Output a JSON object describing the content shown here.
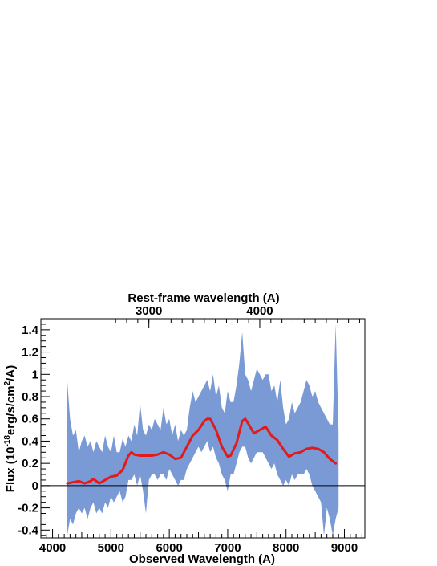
{
  "chart_data": {
    "type": "area",
    "xlabel": "Observed Wavelength (A)",
    "ylabel_prefix": "Flux (10",
    "ylabel_exp1": "-18",
    "ylabel_mid": "erg/s/cm",
    "ylabel_exp2": "2",
    "ylabel_suffix": "/A)",
    "top_axis_label": "Rest-frame wavelength (A)",
    "top_ticks": [
      {
        "label": "3000",
        "observed": 5650
      },
      {
        "label": "4000",
        "observed": 7550
      }
    ],
    "xlim": [
      3800,
      9350
    ],
    "ylim": [
      -0.47,
      1.5
    ],
    "xticks": [
      4000,
      5000,
      6000,
      7000,
      8000,
      9000
    ],
    "yticks": [
      -0.4,
      -0.2,
      0,
      0.2,
      0.4,
      0.6,
      0.8,
      1,
      1.2,
      1.4
    ],
    "ytick_labels": [
      "-0.4",
      "-0.2",
      "0",
      "0.2",
      "0.4",
      "0.6",
      "0.8",
      "1",
      "1.2",
      "1.4"
    ],
    "zero_line": 0,
    "band_color": "#7a9ad6",
    "smooth_color": "#e31a1c",
    "band": {
      "x": [
        4250,
        4300,
        4350,
        4400,
        4450,
        4500,
        4550,
        4600,
        4650,
        4700,
        4750,
        4800,
        4850,
        4900,
        4950,
        5000,
        5050,
        5100,
        5150,
        5200,
        5250,
        5300,
        5350,
        5400,
        5450,
        5500,
        5550,
        5600,
        5650,
        5700,
        5750,
        5800,
        5850,
        5900,
        5950,
        6000,
        6050,
        6100,
        6150,
        6200,
        6250,
        6300,
        6350,
        6400,
        6450,
        6500,
        6550,
        6600,
        6650,
        6700,
        6750,
        6800,
        6850,
        6900,
        6950,
        7000,
        7050,
        7100,
        7150,
        7200,
        7250,
        7300,
        7350,
        7400,
        7450,
        7500,
        7550,
        7600,
        7650,
        7700,
        7750,
        7800,
        7850,
        7900,
        7950,
        8000,
        8050,
        8100,
        8150,
        8200,
        8250,
        8300,
        8350,
        8400,
        8450,
        8500,
        8550,
        8600,
        8650,
        8700,
        8750,
        8800,
        8850,
        8900
      ],
      "upper": [
        0.95,
        0.6,
        0.45,
        0.5,
        0.3,
        0.4,
        0.45,
        0.35,
        0.4,
        0.3,
        0.4,
        0.35,
        0.3,
        0.45,
        0.35,
        0.3,
        0.45,
        0.3,
        0.3,
        0.42,
        0.35,
        0.45,
        0.4,
        0.55,
        0.45,
        0.74,
        0.5,
        0.45,
        0.55,
        0.5,
        0.6,
        0.55,
        0.5,
        0.7,
        0.55,
        0.6,
        0.45,
        0.55,
        0.4,
        0.5,
        0.45,
        0.5,
        0.7,
        0.85,
        0.75,
        0.8,
        0.85,
        0.9,
        0.95,
        0.85,
        1.0,
        0.8,
        0.9,
        0.7,
        0.65,
        0.85,
        0.75,
        0.75,
        0.9,
        1.1,
        1.38,
        1.0,
        0.95,
        0.85,
        0.95,
        1.05,
        1.0,
        0.95,
        1.0,
        1.0,
        0.85,
        0.9,
        0.75,
        0.95,
        0.7,
        0.55,
        0.6,
        0.75,
        0.65,
        0.7,
        0.75,
        0.85,
        0.95,
        0.9,
        0.8,
        0.85,
        0.75,
        0.7,
        0.65,
        0.6,
        0.55,
        0.55,
        1.45,
        0.5
      ],
      "lower": [
        -0.45,
        -0.3,
        -0.35,
        -0.25,
        -0.2,
        -0.25,
        -0.2,
        -0.3,
        -0.2,
        -0.15,
        -0.25,
        -0.2,
        -0.25,
        -0.15,
        -0.2,
        -0.1,
        -0.15,
        -0.1,
        -0.05,
        -0.15,
        -0.1,
        0.05,
        0.05,
        0.1,
        0.0,
        0.1,
        -0.05,
        -0.25,
        0.05,
        0.1,
        0.1,
        0.05,
        0.1,
        0.1,
        0.05,
        0.15,
        0.1,
        0.05,
        0.0,
        0.05,
        0.05,
        0.15,
        0.2,
        0.25,
        0.3,
        0.35,
        0.3,
        0.35,
        0.4,
        0.3,
        0.35,
        0.25,
        0.2,
        0.1,
        0.05,
        -0.05,
        0.1,
        0.1,
        0.2,
        0.3,
        0.35,
        0.35,
        0.25,
        0.2,
        0.25,
        0.3,
        0.3,
        0.3,
        0.25,
        0.2,
        0.15,
        0.2,
        0.1,
        0.05,
        0.0,
        0.05,
        0.0,
        0.1,
        0.05,
        0.1,
        0.1,
        0.1,
        0.15,
        0.1,
        0.0,
        -0.05,
        -0.1,
        -0.15,
        -0.45,
        -0.2,
        -0.3,
        -0.45,
        -0.3,
        -0.2
      ]
    },
    "smooth": {
      "x": [
        4250,
        4350,
        4450,
        4550,
        4650,
        4700,
        4800,
        4900,
        5000,
        5100,
        5200,
        5300,
        5350,
        5400,
        5500,
        5600,
        5700,
        5800,
        5900,
        6000,
        6100,
        6200,
        6300,
        6400,
        6500,
        6600,
        6650,
        6700,
        6800,
        6900,
        7000,
        7050,
        7150,
        7250,
        7300,
        7350,
        7450,
        7550,
        7650,
        7750,
        7850,
        7950,
        8050,
        8150,
        8250,
        8350,
        8450,
        8550,
        8650,
        8750,
        8850
      ],
      "y": [
        0.02,
        0.03,
        0.04,
        0.02,
        0.04,
        0.06,
        0.02,
        0.05,
        0.08,
        0.09,
        0.14,
        0.27,
        0.3,
        0.28,
        0.27,
        0.27,
        0.27,
        0.28,
        0.3,
        0.28,
        0.24,
        0.25,
        0.35,
        0.45,
        0.5,
        0.58,
        0.6,
        0.6,
        0.5,
        0.35,
        0.26,
        0.27,
        0.38,
        0.58,
        0.6,
        0.56,
        0.47,
        0.5,
        0.53,
        0.45,
        0.41,
        0.33,
        0.26,
        0.29,
        0.3,
        0.33,
        0.34,
        0.33,
        0.3,
        0.24,
        0.2
      ]
    }
  }
}
